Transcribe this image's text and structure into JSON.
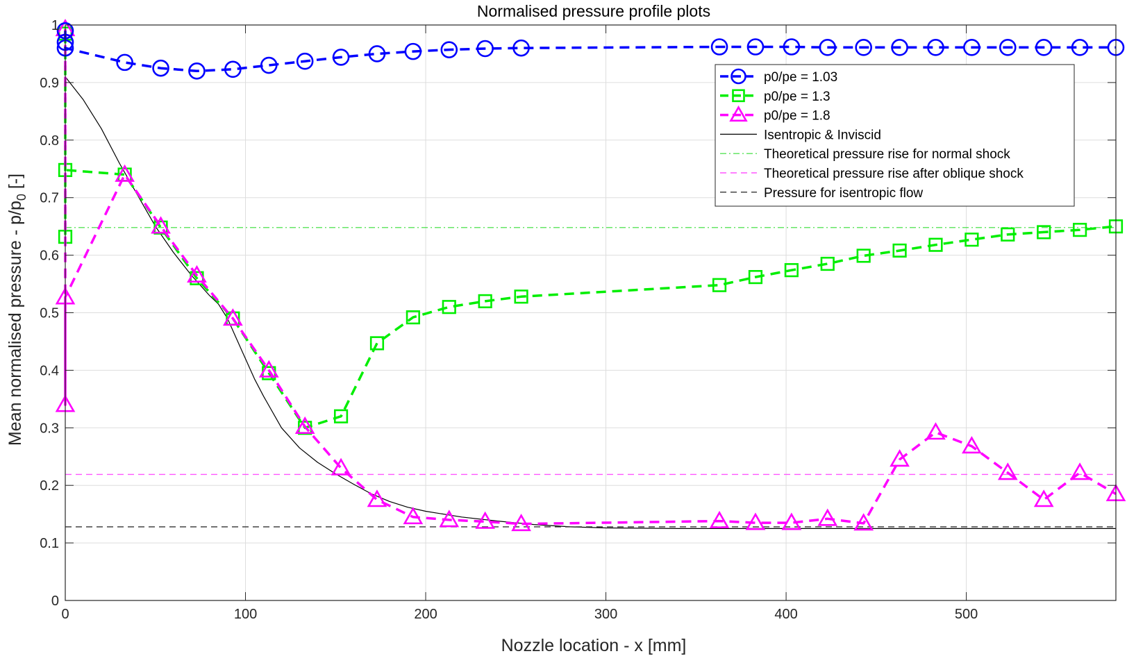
{
  "chart_data": {
    "type": "line",
    "title": "Normalised pressure profile plots",
    "xlabel": "Nozzle location - x [mm]",
    "ylabel_main": "Mean normalised pressure - p/p",
    "ylabel_sub": "0",
    "ylabel_suffix": " [-]",
    "xlim": [
      0,
      583
    ],
    "ylim": [
      0,
      1
    ],
    "xticks": [
      0,
      100,
      200,
      300,
      400,
      500
    ],
    "yticks": [
      0,
      0.1,
      0.2,
      0.3,
      0.4,
      0.5,
      0.6,
      0.7,
      0.8,
      0.9,
      1
    ],
    "ytick_labels": [
      "0",
      "0.1",
      "0.2",
      "0.3",
      "0.4",
      "0.5",
      "0.6",
      "0.7",
      "0.8",
      "0.9",
      "1"
    ],
    "xtick_labels": [
      "0",
      "100",
      "200",
      "300",
      "400",
      "500"
    ],
    "grid": true,
    "legend_position": "top-right",
    "series": [
      {
        "name": "p0/pe = 1.03",
        "color": "#0000ff",
        "marker": "circle",
        "dash": "dashed-thick",
        "points": [
          [
            0,
            0.99
          ],
          [
            0,
            0.97
          ],
          [
            0,
            0.96
          ],
          [
            33,
            0.935
          ],
          [
            53,
            0.925
          ],
          [
            73,
            0.92
          ],
          [
            93,
            0.923
          ],
          [
            113,
            0.93
          ],
          [
            133,
            0.937
          ],
          [
            153,
            0.944
          ],
          [
            173,
            0.95
          ],
          [
            193,
            0.954
          ],
          [
            213,
            0.957
          ],
          [
            233,
            0.959
          ],
          [
            253,
            0.96
          ],
          [
            363,
            0.962
          ],
          [
            383,
            0.962
          ],
          [
            403,
            0.962
          ],
          [
            423,
            0.961
          ],
          [
            443,
            0.961
          ],
          [
            463,
            0.961
          ],
          [
            483,
            0.961
          ],
          [
            503,
            0.961
          ],
          [
            523,
            0.961
          ],
          [
            543,
            0.961
          ],
          [
            563,
            0.961
          ],
          [
            583,
            0.961
          ]
        ]
      },
      {
        "name": "p0/pe = 1.3",
        "color": "#00ee00",
        "marker": "square",
        "dash": "dashed-thick",
        "points": [
          [
            0,
            0.985
          ],
          [
            0,
            0.632
          ],
          [
            0,
            0.748
          ],
          [
            33,
            0.74
          ],
          [
            53,
            0.648
          ],
          [
            73,
            0.56
          ],
          [
            93,
            0.49
          ],
          [
            113,
            0.395
          ],
          [
            133,
            0.3
          ],
          [
            153,
            0.32
          ],
          [
            173,
            0.447
          ],
          [
            193,
            0.492
          ],
          [
            213,
            0.51
          ],
          [
            233,
            0.52
          ],
          [
            253,
            0.528
          ],
          [
            363,
            0.548
          ],
          [
            383,
            0.562
          ],
          [
            403,
            0.574
          ],
          [
            423,
            0.585
          ],
          [
            443,
            0.599
          ],
          [
            463,
            0.608
          ],
          [
            483,
            0.618
          ],
          [
            503,
            0.627
          ],
          [
            523,
            0.636
          ],
          [
            543,
            0.64
          ],
          [
            563,
            0.644
          ],
          [
            583,
            0.65
          ]
        ]
      },
      {
        "name": "p0/pe = 1.8",
        "color": "#ff00ff",
        "marker": "triangle",
        "dash": "dashed-thick",
        "points": [
          [
            0,
            0.993
          ],
          [
            0,
            0.34
          ],
          [
            0,
            0.527
          ],
          [
            33,
            0.74
          ],
          [
            53,
            0.65
          ],
          [
            73,
            0.565
          ],
          [
            93,
            0.49
          ],
          [
            113,
            0.4
          ],
          [
            133,
            0.302
          ],
          [
            153,
            0.23
          ],
          [
            173,
            0.175
          ],
          [
            193,
            0.145
          ],
          [
            213,
            0.14
          ],
          [
            233,
            0.137
          ],
          [
            253,
            0.133
          ],
          [
            363,
            0.138
          ],
          [
            383,
            0.135
          ],
          [
            403,
            0.135
          ],
          [
            423,
            0.142
          ],
          [
            443,
            0.134
          ],
          [
            463,
            0.245
          ],
          [
            483,
            0.292
          ],
          [
            503,
            0.268
          ],
          [
            523,
            0.222
          ],
          [
            543,
            0.175
          ],
          [
            563,
            0.222
          ],
          [
            583,
            0.185
          ]
        ]
      },
      {
        "name": "Isentropic & Inviscid",
        "color": "#000000",
        "marker": "none",
        "dash": "solid-thin",
        "points": [
          [
            0,
            0.91
          ],
          [
            10,
            0.87
          ],
          [
            20,
            0.82
          ],
          [
            30,
            0.76
          ],
          [
            40,
            0.705
          ],
          [
            50,
            0.65
          ],
          [
            60,
            0.605
          ],
          [
            70,
            0.565
          ],
          [
            80,
            0.53
          ],
          [
            85,
            0.515
          ],
          [
            90,
            0.49
          ],
          [
            95,
            0.455
          ],
          [
            100,
            0.42
          ],
          [
            105,
            0.385
          ],
          [
            110,
            0.355
          ],
          [
            120,
            0.3
          ],
          [
            130,
            0.265
          ],
          [
            140,
            0.24
          ],
          [
            150,
            0.22
          ],
          [
            160,
            0.202
          ],
          [
            170,
            0.185
          ],
          [
            180,
            0.172
          ],
          [
            190,
            0.162
          ],
          [
            200,
            0.155
          ],
          [
            220,
            0.145
          ],
          [
            240,
            0.138
          ],
          [
            260,
            0.132
          ],
          [
            280,
            0.128
          ],
          [
            300,
            0.126
          ],
          [
            340,
            0.125
          ],
          [
            400,
            0.125
          ],
          [
            440,
            0.125
          ],
          [
            480,
            0.125
          ],
          [
            583,
            0.125
          ]
        ]
      },
      {
        "name": "Theoretical pressure rise for normal shock",
        "color": "#33dd33",
        "marker": "none",
        "dash": "dashdot-thin",
        "points": [
          [
            0,
            0.648
          ],
          [
            583,
            0.648
          ]
        ]
      },
      {
        "name": "Theoretical pressure rise after oblique shock",
        "color": "#ff55ff",
        "marker": "none",
        "dash": "dashed-thin",
        "points": [
          [
            0,
            0.219
          ],
          [
            583,
            0.219
          ]
        ]
      },
      {
        "name": "Pressure for isentropic flow",
        "color": "#333333",
        "marker": "none",
        "dash": "dashed-thin",
        "points": [
          [
            0,
            0.128
          ],
          [
            583,
            0.128
          ]
        ]
      }
    ]
  }
}
